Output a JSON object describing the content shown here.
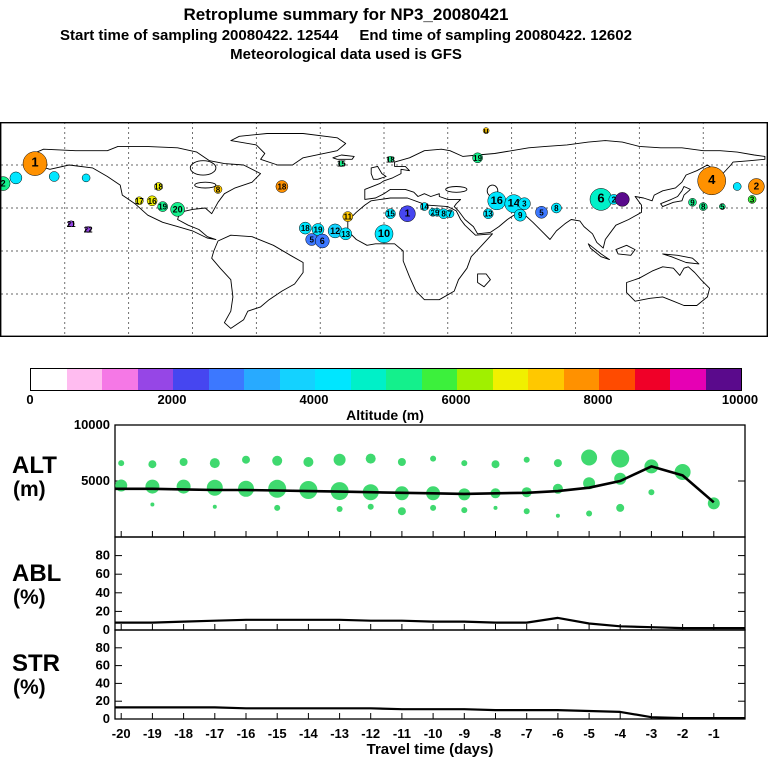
{
  "header": {
    "title": "Retroplume summary for NP3_20080421",
    "subtitle": "Start time of sampling 20080422. 12544     End time of sampling 20080422. 12602",
    "met_line": "Meteorological data used is GFS"
  },
  "panels": {
    "alt_label": [
      "ALT",
      "(m)"
    ],
    "abl_label": [
      "ABL",
      "(%)"
    ],
    "str_label": [
      "STR",
      "(%)"
    ],
    "xlabel": "Travel time (days)"
  },
  "chart_data": [
    {
      "type": "scatter",
      "name": "retroplume_map",
      "projection": "equirectangular",
      "lon_range": [
        -180,
        180
      ],
      "lat_range": [
        -60,
        90
      ],
      "grid_deg": 30,
      "colorbar": {
        "label": "Altitude (m)",
        "range": [
          0,
          10000
        ],
        "ticks": [
          0,
          2000,
          4000,
          6000,
          8000,
          10000
        ],
        "stops": [
          "#ffffff",
          "#ffbcf0",
          "#f578e6",
          "#9646e6",
          "#4646f0",
          "#3c78ff",
          "#28aaff",
          "#14d2ff",
          "#00e6ff",
          "#00f0c8",
          "#14f08c",
          "#3cf03c",
          "#a0f000",
          "#f0f000",
          "#ffc800",
          "#ff9100",
          "#ff4b00",
          "#f00028",
          "#e600b4",
          "#5a0a8c"
        ]
      },
      "markers": [
        {
          "label": "2",
          "lon": -179,
          "lat": 47,
          "alt": 5200,
          "r": 7
        },
        {
          "label": "",
          "lon": -173,
          "lat": 51,
          "alt": 4300,
          "r": 6
        },
        {
          "label": "",
          "lon": -155,
          "lat": 52,
          "alt": 4300,
          "r": 5
        },
        {
          "label": "",
          "lon": -140,
          "lat": 51,
          "alt": 4200,
          "r": 4
        },
        {
          "label": "1",
          "lon": -164,
          "lat": 61,
          "alt": 7600,
          "r": 12
        },
        {
          "label": "21",
          "lon": -147,
          "lat": 19,
          "alt": 1800,
          "r": 3
        },
        {
          "label": "22",
          "lon": -139,
          "lat": 15,
          "alt": 1700,
          "r": 3
        },
        {
          "label": "18",
          "lon": -106,
          "lat": 45,
          "alt": 6700,
          "r": 4
        },
        {
          "label": "17",
          "lon": -115,
          "lat": 35,
          "alt": 6600,
          "r": 4
        },
        {
          "label": "16",
          "lon": -109,
          "lat": 35,
          "alt": 6500,
          "r": 5
        },
        {
          "label": "19",
          "lon": -104,
          "lat": 31,
          "alt": 5400,
          "r": 5
        },
        {
          "label": "20",
          "lon": -97,
          "lat": 29,
          "alt": 5000,
          "r": 7
        },
        {
          "label": "8",
          "lon": -78,
          "lat": 43,
          "alt": 7400,
          "r": 4
        },
        {
          "label": "18",
          "lon": -48,
          "lat": 45,
          "alt": 7500,
          "r": 6
        },
        {
          "label": "15",
          "lon": -20,
          "lat": 61,
          "alt": 5400,
          "r": 3
        },
        {
          "label": "18",
          "lon": 3,
          "lat": 64,
          "alt": 5400,
          "r": 3
        },
        {
          "label": "19",
          "lon": 44,
          "lat": 65,
          "alt": 5300,
          "r": 5
        },
        {
          "label": "u",
          "lon": 48,
          "lat": 84,
          "alt": 7200,
          "r": 3
        },
        {
          "label": "11",
          "lon": -17,
          "lat": 24,
          "alt": 7300,
          "r": 5
        },
        {
          "label": "18",
          "lon": -37,
          "lat": 16,
          "alt": 4300,
          "r": 6
        },
        {
          "label": "19",
          "lon": -31,
          "lat": 15,
          "alt": 4200,
          "r": 6
        },
        {
          "label": "12",
          "lon": -23,
          "lat": 14,
          "alt": 3800,
          "r": 7
        },
        {
          "label": "5",
          "lon": -34,
          "lat": 8,
          "alt": 2600,
          "r": 6
        },
        {
          "label": "6",
          "lon": -29,
          "lat": 7,
          "alt": 2700,
          "r": 7
        },
        {
          "label": "13",
          "lon": -18,
          "lat": 12,
          "alt": 4000,
          "r": 6
        },
        {
          "label": "10",
          "lon": 0,
          "lat": 12,
          "alt": 4200,
          "r": 9
        },
        {
          "label": "15",
          "lon": 3,
          "lat": 26,
          "alt": 4400,
          "r": 5
        },
        {
          "label": "1",
          "lon": 11,
          "lat": 26,
          "alt": 2200,
          "r": 8
        },
        {
          "label": "14",
          "lon": 19,
          "lat": 31,
          "alt": 4300,
          "r": 4
        },
        {
          "label": "2",
          "lon": 23,
          "lat": 27,
          "alt": 4200,
          "r": 4
        },
        {
          "label": "9",
          "lon": 25,
          "lat": 27,
          "alt": 4100,
          "r": 4
        },
        {
          "label": "8",
          "lon": 28,
          "lat": 26,
          "alt": 4300,
          "r": 5
        },
        {
          "label": "7",
          "lon": 31,
          "lat": 26,
          "alt": 4200,
          "r": 4
        },
        {
          "label": "16",
          "lon": 53,
          "lat": 35,
          "alt": 4400,
          "r": 9
        },
        {
          "label": "14",
          "lon": 61,
          "lat": 33,
          "alt": 4300,
          "r": 9
        },
        {
          "label": "3",
          "lon": 66,
          "lat": 33,
          "alt": 4400,
          "r": 6
        },
        {
          "label": "13",
          "lon": 49,
          "lat": 26,
          "alt": 4200,
          "r": 5
        },
        {
          "label": "9",
          "lon": 64,
          "lat": 25,
          "alt": 4300,
          "r": 6
        },
        {
          "label": "5",
          "lon": 74,
          "lat": 27,
          "alt": 2600,
          "r": 6
        },
        {
          "label": "8",
          "lon": 81,
          "lat": 30,
          "alt": 4200,
          "r": 5
        },
        {
          "label": "6",
          "lon": 102,
          "lat": 36,
          "alt": 4500,
          "r": 11
        },
        {
          "label": "2",
          "lon": 108,
          "lat": 36,
          "alt": 4400,
          "r": 5
        },
        {
          "label": "",
          "lon": 112,
          "lat": 36,
          "alt": 9800,
          "r": 7
        },
        {
          "label": "4",
          "lon": 154,
          "lat": 49,
          "alt": 7600,
          "r": 14
        },
        {
          "label": "9",
          "lon": 145,
          "lat": 34,
          "alt": 5300,
          "r": 4
        },
        {
          "label": "8",
          "lon": 150,
          "lat": 31,
          "alt": 5200,
          "r": 4
        },
        {
          "label": "5",
          "lon": 159,
          "lat": 31,
          "alt": 5400,
          "r": 3
        },
        {
          "label": "2",
          "lon": 175,
          "lat": 45,
          "alt": 7500,
          "r": 8
        },
        {
          "label": "3",
          "lon": 173,
          "lat": 36,
          "alt": 5600,
          "r": 4
        },
        {
          "label": "",
          "lon": 166,
          "lat": 45,
          "alt": 4300,
          "r": 4
        }
      ]
    },
    {
      "type": "scatter+line",
      "name": "altitude_panel",
      "ylabel": "ALT (m)",
      "ylim": [
        0,
        10000
      ],
      "yticks": [
        5000,
        10000
      ],
      "bubble_color": "#3fd96f",
      "x": [
        -20,
        -19,
        -18,
        -17,
        -16,
        -15,
        -14,
        -13,
        -12,
        -11,
        -10,
        -9,
        -8,
        -7,
        -6,
        -5,
        -4,
        -3,
        -2,
        -1
      ],
      "mean_line": [
        4300,
        4300,
        4250,
        4200,
        4200,
        4150,
        4100,
        4050,
        4000,
        3950,
        3900,
        3850,
        3900,
        3950,
        4100,
        4400,
        5000,
        6300,
        5500,
        3100
      ],
      "bubbles": [
        [
          -20,
          4600,
          6
        ],
        [
          -20,
          6600,
          3
        ],
        [
          -19,
          4500,
          7
        ],
        [
          -19,
          6500,
          4
        ],
        [
          -19,
          2900,
          2
        ],
        [
          -18,
          4500,
          7
        ],
        [
          -18,
          6700,
          4
        ],
        [
          -17,
          4400,
          8
        ],
        [
          -17,
          6600,
          5
        ],
        [
          -17,
          2700,
          2
        ],
        [
          -16,
          4300,
          8
        ],
        [
          -16,
          6900,
          4
        ],
        [
          -15,
          4300,
          9
        ],
        [
          -15,
          6800,
          5
        ],
        [
          -15,
          2600,
          3
        ],
        [
          -14,
          4200,
          9
        ],
        [
          -14,
          6700,
          5
        ],
        [
          -13,
          4100,
          9
        ],
        [
          -13,
          6900,
          6
        ],
        [
          -13,
          2500,
          3
        ],
        [
          -12,
          4000,
          8
        ],
        [
          -12,
          7000,
          5
        ],
        [
          -12,
          2700,
          3
        ],
        [
          -11,
          3900,
          7
        ],
        [
          -11,
          6700,
          4
        ],
        [
          -11,
          2300,
          4
        ],
        [
          -10,
          3900,
          7
        ],
        [
          -10,
          7000,
          3
        ],
        [
          -10,
          2600,
          3
        ],
        [
          -9,
          3800,
          6
        ],
        [
          -9,
          6600,
          3
        ],
        [
          -9,
          2400,
          3
        ],
        [
          -8,
          3900,
          5
        ],
        [
          -8,
          6500,
          4
        ],
        [
          -8,
          2600,
          2
        ],
        [
          -7,
          4000,
          5
        ],
        [
          -7,
          6900,
          3
        ],
        [
          -7,
          2300,
          3
        ],
        [
          -6,
          4300,
          5
        ],
        [
          -6,
          6600,
          4
        ],
        [
          -6,
          1900,
          2
        ],
        [
          -5,
          4800,
          6
        ],
        [
          -5,
          7100,
          8
        ],
        [
          -5,
          2100,
          3
        ],
        [
          -4,
          5200,
          6
        ],
        [
          -4,
          7000,
          9
        ],
        [
          -4,
          2600,
          4
        ],
        [
          -3,
          6300,
          7
        ],
        [
          -3,
          4000,
          3
        ],
        [
          -2,
          5800,
          8
        ],
        [
          -1,
          3000,
          6
        ]
      ]
    },
    {
      "type": "line",
      "name": "abl_fraction_panel",
      "ylabel": "ABL (%)",
      "ylim": [
        0,
        100
      ],
      "yticks": [
        0,
        20,
        40,
        60,
        80
      ],
      "x": [
        -20,
        -19,
        -18,
        -17,
        -16,
        -15,
        -14,
        -13,
        -12,
        -11,
        -10,
        -9,
        -8,
        -7,
        -6,
        -5,
        -4,
        -3,
        -2,
        -1
      ],
      "values": [
        8,
        8,
        9,
        10,
        11,
        11,
        11,
        11,
        10,
        10,
        9,
        9,
        8,
        8,
        13,
        7,
        4,
        3,
        2,
        2
      ]
    },
    {
      "type": "line",
      "name": "stratosphere_fraction_panel",
      "ylabel": "STR (%)",
      "ylim": [
        0,
        100
      ],
      "yticks": [
        0,
        20,
        40,
        60,
        80
      ],
      "x": [
        -20,
        -19,
        -18,
        -17,
        -16,
        -15,
        -14,
        -13,
        -12,
        -11,
        -10,
        -9,
        -8,
        -7,
        -6,
        -5,
        -4,
        -3,
        -2,
        -1
      ],
      "values": [
        13,
        13,
        13,
        13,
        12,
        12,
        12,
        12,
        12,
        11,
        11,
        11,
        10,
        10,
        10,
        9,
        8,
        2,
        1,
        1
      ],
      "xlabel": "Travel time (days)"
    }
  ]
}
